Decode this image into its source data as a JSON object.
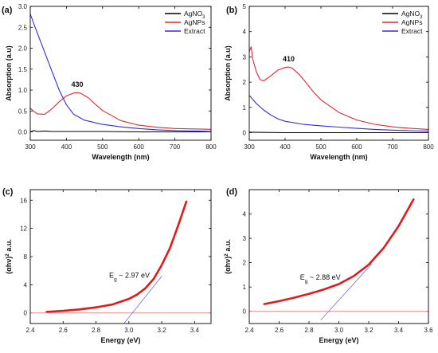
{
  "chart_data": [
    {
      "id": "a",
      "type": "line",
      "panel_label": "(a)",
      "xlabel": "Wavelength (nm)",
      "ylabel": "Absorption (a.u)",
      "xlim": [
        300,
        800
      ],
      "ylim": [
        -0.2,
        3.0
      ],
      "xticks": [
        300,
        400,
        500,
        600,
        700,
        800
      ],
      "yticks": [
        0.0,
        0.5,
        1.0,
        1.5,
        2.0,
        2.5,
        3.0
      ],
      "legend_position": "top-right",
      "series": [
        {
          "name": "AgNO3",
          "name_main": "AgNO",
          "name_sub": "3",
          "color": "#000000",
          "x": [
            300,
            310,
            320,
            340,
            360,
            400,
            500,
            600,
            700,
            800
          ],
          "y": [
            0.0,
            0.03,
            0.01,
            0.02,
            0.01,
            0.01,
            0.01,
            0.0,
            0.0,
            0.0
          ]
        },
        {
          "name": "AgNPs",
          "color": "#e8262a",
          "x": [
            300,
            310,
            320,
            340,
            360,
            380,
            400,
            420,
            430,
            440,
            460,
            480,
            500,
            550,
            600,
            650,
            700,
            750,
            800
          ],
          "y": [
            0.57,
            0.49,
            0.43,
            0.42,
            0.55,
            0.72,
            0.86,
            0.93,
            0.94,
            0.92,
            0.82,
            0.66,
            0.51,
            0.27,
            0.16,
            0.11,
            0.08,
            0.07,
            0.06
          ]
        },
        {
          "name": "Extract",
          "color": "#2a2ee8",
          "x": [
            300,
            310,
            320,
            340,
            360,
            380,
            400,
            420,
            450,
            500,
            550,
            600,
            650,
            700,
            750,
            800
          ],
          "y": [
            2.82,
            2.58,
            2.35,
            1.9,
            1.45,
            1.0,
            0.65,
            0.42,
            0.28,
            0.18,
            0.12,
            0.08,
            0.05,
            0.03,
            0.02,
            0.01
          ]
        }
      ],
      "annotations": [
        {
          "text": "430",
          "x": 430,
          "y": 0.94
        }
      ]
    },
    {
      "id": "b",
      "type": "line",
      "panel_label": "(b)",
      "xlabel": "Wavelength (nm)",
      "ylabel": "Absorption (a.u)",
      "xlim": [
        300,
        800
      ],
      "ylim": [
        -0.3,
        5.0
      ],
      "xticks": [
        300,
        400,
        500,
        600,
        700,
        800
      ],
      "yticks": [
        0,
        1,
        2,
        3,
        4,
        5
      ],
      "legend_position": "top-right",
      "series": [
        {
          "name": "AgNO3",
          "name_main": "AgNO",
          "name_sub": "3",
          "color": "#000000",
          "x": [
            300,
            400,
            500,
            600,
            700,
            800
          ],
          "y": [
            0.02,
            0.0,
            0.0,
            0.0,
            0.0,
            0.0
          ]
        },
        {
          "name": "AgNPs",
          "color": "#e8262a",
          "x": [
            300,
            305,
            310,
            320,
            330,
            340,
            360,
            380,
            400,
            410,
            420,
            440,
            460,
            480,
            500,
            550,
            600,
            650,
            700,
            750,
            800
          ],
          "y": [
            3.2,
            3.4,
            2.9,
            2.4,
            2.1,
            2.05,
            2.25,
            2.48,
            2.58,
            2.6,
            2.55,
            2.3,
            1.95,
            1.6,
            1.3,
            0.8,
            0.5,
            0.33,
            0.23,
            0.17,
            0.13
          ]
        },
        {
          "name": "Extract",
          "color": "#2a2ee8",
          "x": [
            300,
            320,
            340,
            360,
            380,
            400,
            450,
            500,
            550,
            600,
            650,
            700,
            750,
            800
          ],
          "y": [
            1.48,
            1.15,
            0.9,
            0.7,
            0.55,
            0.45,
            0.33,
            0.27,
            0.22,
            0.17,
            0.13,
            0.1,
            0.08,
            0.06
          ]
        }
      ],
      "annotations": [
        {
          "text": "410",
          "x": 410,
          "y": 2.6
        }
      ]
    },
    {
      "id": "c",
      "type": "line",
      "panel_label": "(c)",
      "xlabel": "Energy (eV)",
      "ylabel": "(αhν)² a.u.",
      "ylabel_main": "(αhν)",
      "ylabel_sup": "2",
      "ylabel_tail": " a.u.",
      "xlim": [
        2.4,
        3.5
      ],
      "ylim": [
        -1.5,
        17.5
      ],
      "xticks": [
        2.4,
        2.6,
        2.8,
        3.0,
        3.2,
        3.4
      ],
      "yticks": [
        0,
        4,
        8,
        12,
        16
      ],
      "series": [
        {
          "name": "data",
          "color": "#e01a1a",
          "x": [
            2.5,
            2.6,
            2.7,
            2.8,
            2.9,
            3.0,
            3.05,
            3.1,
            3.15,
            3.2,
            3.25,
            3.3,
            3.35
          ],
          "y": [
            0.15,
            0.3,
            0.5,
            0.8,
            1.2,
            2.0,
            2.6,
            3.5,
            4.8,
            6.8,
            9.2,
            12.4,
            15.8
          ]
        },
        {
          "name": "baseline",
          "color": "#f08080",
          "x": [
            2.4,
            3.5
          ],
          "y": [
            0,
            0
          ]
        },
        {
          "name": "fit",
          "color": "#6f6fdc",
          "x": [
            2.97,
            3.2
          ],
          "y": [
            -1.5,
            5.2
          ]
        }
      ],
      "annotations": [
        {
          "text": "Eg ~ 2.97 eV",
          "main": "E",
          "sub": "g",
          "tail": " ~ 2.97 eV",
          "x": 2.88,
          "y": 5.0
        }
      ]
    },
    {
      "id": "d",
      "type": "line",
      "panel_label": "(d)",
      "xlabel": "Energy (eV)",
      "ylabel": "(αhν)² a.u.",
      "ylabel_main": "(αhν)",
      "ylabel_sup": "2",
      "ylabel_tail": " a.u.",
      "xlim": [
        2.4,
        3.6
      ],
      "ylim": [
        -0.5,
        5.0
      ],
      "xticks": [
        2.4,
        2.6,
        2.8,
        3.0,
        3.2,
        3.4,
        3.6
      ],
      "yticks": [
        0,
        1,
        2,
        3,
        4
      ],
      "series": [
        {
          "name": "data",
          "color": "#e01a1a",
          "x": [
            2.5,
            2.6,
            2.7,
            2.8,
            2.9,
            3.0,
            3.1,
            3.2,
            3.3,
            3.4,
            3.5
          ],
          "y": [
            0.3,
            0.42,
            0.56,
            0.72,
            0.9,
            1.12,
            1.45,
            1.92,
            2.6,
            3.5,
            4.6
          ]
        },
        {
          "name": "baseline",
          "color": "#f08080",
          "x": [
            2.4,
            3.6
          ],
          "y": [
            0,
            0
          ]
        },
        {
          "name": "fit",
          "color": "#6f6fdc",
          "x": [
            2.88,
            3.22
          ],
          "y": [
            -0.35,
            1.95
          ]
        }
      ],
      "annotations": [
        {
          "text": "Eg ~ 2.88 eV",
          "main": "E",
          "sub": "g",
          "tail": " ~ 2.88 eV",
          "x": 2.74,
          "y": 1.3
        }
      ]
    }
  ]
}
